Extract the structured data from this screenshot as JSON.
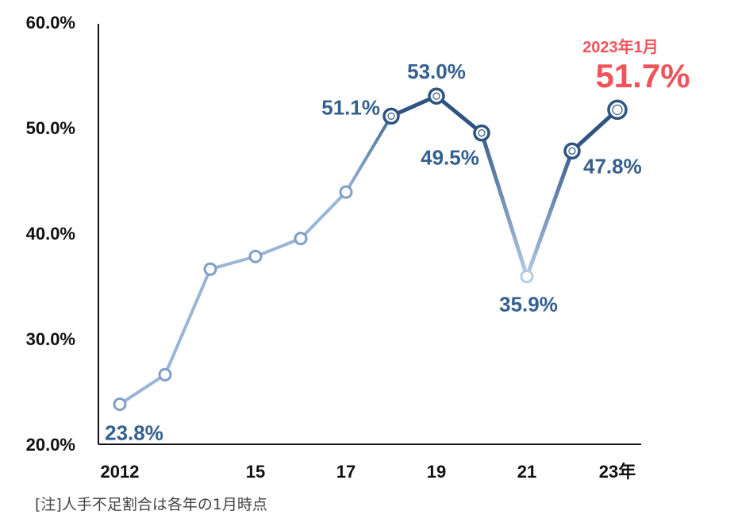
{
  "chart_data": {
    "type": "line",
    "x": [
      2012,
      2013,
      2014,
      2015,
      2016,
      2017,
      2018,
      2019,
      2020,
      2021,
      2022,
      2023
    ],
    "values": [
      23.8,
      26.6,
      36.6,
      37.8,
      39.5,
      43.9,
      51.1,
      53.0,
      49.5,
      35.9,
      47.8,
      51.7
    ],
    "ylim": [
      20,
      60
    ],
    "yticks": [
      "20.0%",
      "30.0%",
      "40.0%",
      "50.0%",
      "60.0%"
    ],
    "xticks": [
      {
        "x": 2012,
        "label": "2012"
      },
      {
        "x": 2015,
        "label": "15"
      },
      {
        "x": 2017,
        "label": "17"
      },
      {
        "x": 2019,
        "label": "19"
      },
      {
        "x": 2021,
        "label": "21"
      },
      {
        "x": 2023,
        "label": "23年"
      }
    ],
    "data_labels": [
      {
        "x": 2012,
        "text": "23.8%"
      },
      {
        "x": 2018,
        "text": "51.1%"
      },
      {
        "x": 2019,
        "text": "53.0%"
      },
      {
        "x": 2020,
        "text": "49.5%"
      },
      {
        "x": 2021,
        "text": "35.9%"
      },
      {
        "x": 2022,
        "text": "47.8%"
      },
      {
        "x": 2023,
        "text": "51.7%"
      }
    ],
    "callout": {
      "text": "2023年1月",
      "value_text": "51.7%"
    },
    "colors": {
      "light": "#9bb5d6",
      "mid": "#7f9fc9",
      "dark": "#2f5482",
      "label": "#34608f",
      "highlight": "#f0545a"
    }
  },
  "note": "[注]人手不足割合は各年の1月時点"
}
